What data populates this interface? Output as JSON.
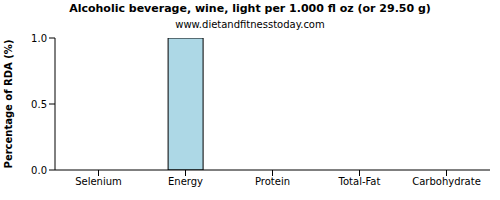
{
  "chart_data": {
    "type": "bar",
    "title": "Alcoholic beverage, wine, light per 1.000 fl oz (or 29.50 g)",
    "subtitle": "www.dietandfitnesstoday.com",
    "y_label": "Percentage of RDA (%)",
    "categories": [
      "Selenium",
      "Energy",
      "Protein",
      "Total-Fat",
      "Carbohydrate"
    ],
    "values": [
      0,
      1,
      0,
      0,
      0
    ],
    "color": "#add8e6",
    "ylim": [
      0,
      1
    ],
    "yticks": [
      {
        "value": 0,
        "label": "0.0"
      },
      {
        "value": 0.5,
        "label": "0.5"
      },
      {
        "value": 1,
        "label": "1.0"
      }
    ],
    "grid": false
  }
}
